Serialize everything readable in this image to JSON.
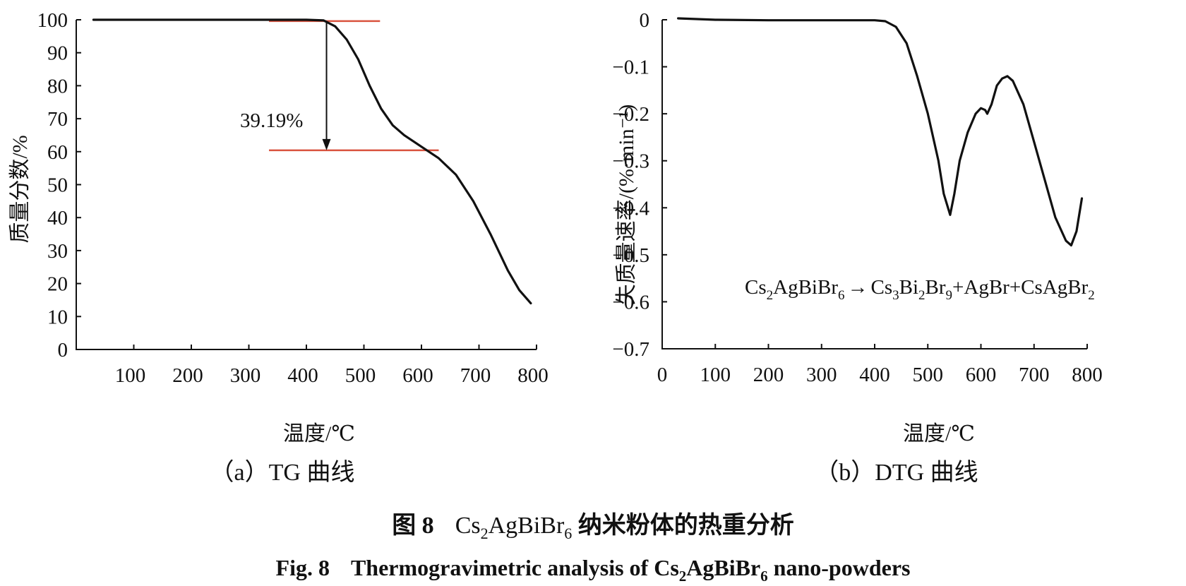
{
  "chart_data": [
    {
      "type": "line",
      "panel_label": "（a）TG 曲线",
      "xlabel": "温度/℃",
      "ylabel": "质量分数/%",
      "xlim": [
        0,
        800
      ],
      "ylim": [
        0,
        100
      ],
      "xticks": [
        "100",
        "200",
        "300",
        "400",
        "500",
        "600",
        "700",
        "800"
      ],
      "yticks": [
        "0",
        "10",
        "20",
        "30",
        "40",
        "50",
        "60",
        "70",
        "80",
        "90",
        "100"
      ],
      "annotation": "39.19%",
      "reference_levels": [
        99.6,
        60.4
      ],
      "series": [
        {
          "x": [
            30,
            100,
            200,
            300,
            400,
            430,
            450,
            470,
            490,
            510,
            530,
            550,
            570,
            600,
            630,
            660,
            690,
            720,
            750,
            770,
            790
          ],
          "y": [
            100,
            100,
            100,
            100,
            100,
            99.8,
            98,
            94,
            88,
            80,
            73,
            68,
            65,
            61.5,
            58,
            53,
            45,
            35,
            24,
            18,
            14
          ]
        }
      ]
    },
    {
      "type": "line",
      "panel_label": "（b）DTG 曲线",
      "xlabel": "温度/℃",
      "ylabel": "失质量速率/(%·min⁻¹)",
      "xlim": [
        0,
        800
      ],
      "ylim": [
        -0.7,
        0
      ],
      "xticks": [
        "0",
        "100",
        "200",
        "300",
        "400",
        "500",
        "600",
        "700",
        "800"
      ],
      "yticks": [
        "0",
        "−0.1",
        "−0.2",
        "−0.3",
        "−0.4",
        "−0.5",
        "−0.6",
        "−0.7"
      ],
      "series": [
        {
          "x": [
            30,
            100,
            200,
            300,
            400,
            420,
            440,
            460,
            480,
            500,
            520,
            530,
            542,
            550,
            560,
            575,
            590,
            600,
            608,
            612,
            620,
            630,
            640,
            650,
            660,
            680,
            700,
            720,
            740,
            760,
            770,
            780,
            790
          ],
          "y": [
            0.003,
            0,
            -0.001,
            -0.001,
            -0.001,
            -0.003,
            -0.015,
            -0.05,
            -0.12,
            -0.2,
            -0.3,
            -0.37,
            -0.415,
            -0.37,
            -0.3,
            -0.24,
            -0.2,
            -0.188,
            -0.192,
            -0.2,
            -0.18,
            -0.14,
            -0.125,
            -0.12,
            -0.13,
            -0.18,
            -0.26,
            -0.34,
            -0.42,
            -0.47,
            -0.48,
            -0.45,
            -0.38
          ]
        }
      ]
    }
  ],
  "equation": {
    "reactant": "Cs",
    "r_sub1": "2",
    "r_mid": "AgBiBr",
    "r_sub2": "6",
    "arrow": "→",
    "p1": "Cs",
    "p1_sub1": "3",
    "p1_mid": "Bi",
    "p1_sub2": "2",
    "p1_end": "Br",
    "p1_sub3": "9",
    "p2": "+AgBr+CsAgBr",
    "p2_sub": "2"
  },
  "caption_zh": {
    "prefix": "图 8",
    "formula1": "Cs",
    "sub1": "2",
    "formula2": "AgBiBr",
    "sub2": "6",
    "suffix": " 纳米粉体的热重分析"
  },
  "caption_en": {
    "prefix": "Fig. 8",
    "text1": "Thermogravimetric analysis of Cs",
    "sub1": "2",
    "text2": "AgBiBr",
    "sub2": "6",
    "text3": " nano-powders"
  }
}
